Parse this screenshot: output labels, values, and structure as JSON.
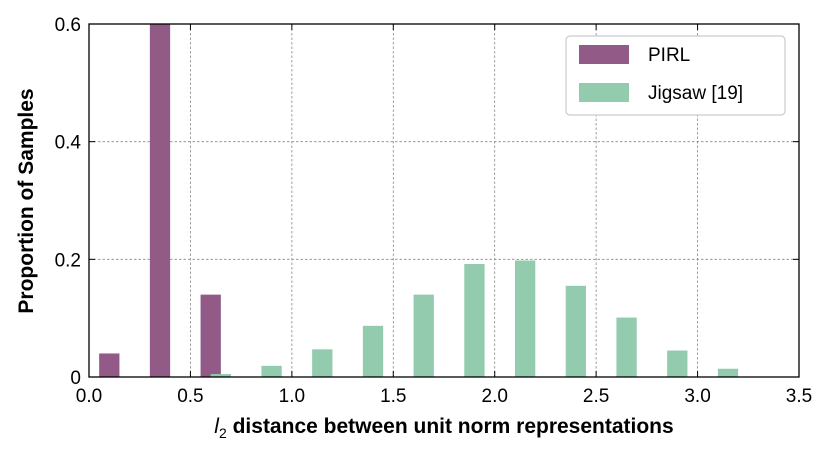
{
  "chart_data": {
    "type": "bar",
    "xlabel_italic": "l",
    "xlabel_sub": "2",
    "xlabel_rest": " distance between unit norm representations",
    "ylabel": "Proportion of Samples",
    "xlim": [
      0.0,
      3.5
    ],
    "ylim": [
      0.0,
      0.6
    ],
    "xticks": [
      0.0,
      0.5,
      1.0,
      1.5,
      2.0,
      2.5,
      3.0,
      3.5
    ],
    "xtick_labels": [
      "0.0",
      "0.5",
      "1.0",
      "1.5",
      "2.0",
      "2.5",
      "3.0",
      "3.5"
    ],
    "yticks": [
      0.0,
      0.2,
      0.4,
      0.6
    ],
    "ytick_labels": [
      "0",
      "0.2",
      "0.4",
      "0.6"
    ],
    "grid": true,
    "legend_position": "top-right",
    "series": [
      {
        "name": "PIRL",
        "color": "#915a87",
        "x": [
          0.1,
          0.35,
          0.6
        ],
        "values": [
          0.04,
          0.6,
          0.14
        ]
      },
      {
        "name": "Jigsaw [19]",
        "color": "#92cbad",
        "x": [
          0.65,
          0.9,
          1.15,
          1.4,
          1.65,
          1.9,
          2.15,
          2.4,
          2.65,
          2.9,
          3.15
        ],
        "values": [
          0.005,
          0.019,
          0.047,
          0.087,
          0.14,
          0.192,
          0.198,
          0.155,
          0.101,
          0.045,
          0.014
        ]
      }
    ]
  }
}
